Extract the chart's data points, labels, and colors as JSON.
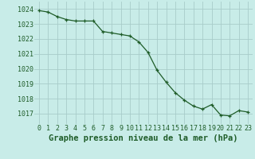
{
  "x": [
    0,
    1,
    2,
    3,
    4,
    5,
    6,
    7,
    8,
    9,
    10,
    11,
    12,
    13,
    14,
    15,
    16,
    17,
    18,
    19,
    20,
    21,
    22,
    23
  ],
  "y": [
    1023.9,
    1023.8,
    1023.5,
    1023.3,
    1023.2,
    1023.2,
    1023.2,
    1022.5,
    1022.4,
    1022.3,
    1022.2,
    1021.8,
    1021.1,
    1019.9,
    1019.1,
    1018.4,
    1017.9,
    1017.5,
    1017.3,
    1017.6,
    1016.9,
    1016.85,
    1017.2,
    1017.1
  ],
  "line_color": "#1e5c28",
  "marker": "+",
  "bg_color": "#c8ece8",
  "grid_color": "#a8ccca",
  "tick_color": "#1e5c28",
  "label_color": "#1e5c28",
  "xlabel": "Graphe pression niveau de la mer (hPa)",
  "ylim": [
    1016.3,
    1024.5
  ],
  "yticks": [
    1017,
    1018,
    1019,
    1020,
    1021,
    1022,
    1023,
    1024
  ],
  "xticks": [
    0,
    1,
    2,
    3,
    4,
    5,
    6,
    7,
    8,
    9,
    10,
    11,
    12,
    13,
    14,
    15,
    16,
    17,
    18,
    19,
    20,
    21,
    22,
    23
  ],
  "xlabel_fontsize": 7.5,
  "tick_fontsize": 6.0,
  "marker_size": 3.5,
  "line_width": 0.9
}
